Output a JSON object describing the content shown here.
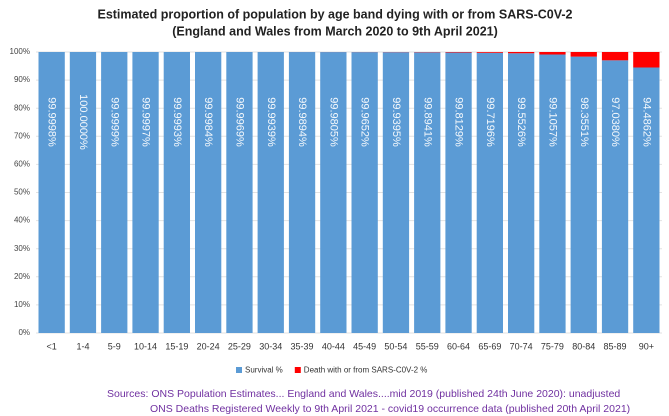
{
  "chart_data": {
    "type": "stacked_bar",
    "title": "Estimated proportion of population by age band dying with or from SARS-C0V-2",
    "subtitle": "(England and Wales from March 2020 to 9th April 2021)",
    "categories": [
      "<1",
      "1-4",
      "5-9",
      "10-14",
      "15-19",
      "20-24",
      "25-29",
      "30-34",
      "35-39",
      "40-44",
      "45-49",
      "50-54",
      "55-59",
      "60-64",
      "65-69",
      "70-74",
      "75-79",
      "80-84",
      "85-89",
      "90+"
    ],
    "series": [
      {
        "name": "Survival %",
        "color": "#5b9bd5",
        "values": [
          99.9998,
          100.0,
          99.9999,
          99.9997,
          99.9993,
          99.9984,
          99.9969,
          99.9939,
          99.9894,
          99.9805,
          99.9652,
          99.9395,
          99.8941,
          99.8129,
          99.7196,
          99.5526,
          99.1057,
          98.3551,
          97.038,
          94.4862
        ],
        "value_labels": [
          "99.9998%",
          "100.0000%",
          "99.9999%",
          "99.9997%",
          "99.9993%",
          "99.9984%",
          "99.9969%",
          "99.9939%",
          "99.9894%",
          "99.9805%",
          "99.9652%",
          "99.9395%",
          "99.8941%",
          "99.8129%",
          "99.7196%",
          "99.5526%",
          "99.1057%",
          "98.3551%",
          "97.0380%",
          "94.4862%"
        ]
      },
      {
        "name": "Death with or from SARS-C0V-2 %",
        "color": "#ff0000",
        "values": [
          0.0002,
          0.0,
          0.0001,
          0.0003,
          0.0007,
          0.0016,
          0.0031,
          0.0061,
          0.0106,
          0.0195,
          0.0348,
          0.0605,
          0.1059,
          0.1871,
          0.2804,
          0.4474,
          0.8943,
          1.6449,
          2.962,
          5.5138
        ]
      }
    ],
    "ylim": [
      0,
      100
    ],
    "yticks": [
      {
        "value": 0,
        "label": "0%"
      },
      {
        "value": 10,
        "label": "10%"
      },
      {
        "value": 20,
        "label": "20%"
      },
      {
        "value": 30,
        "label": "30%"
      },
      {
        "value": 40,
        "label": "40%"
      },
      {
        "value": 50,
        "label": "50%"
      },
      {
        "value": 60,
        "label": "60%"
      },
      {
        "value": 70,
        "label": "70%"
      },
      {
        "value": 80,
        "label": "80%"
      },
      {
        "value": 90,
        "label": "90%"
      },
      {
        "value": 100,
        "label": "100%"
      }
    ],
    "grid": true,
    "legend": "bottom",
    "sources": [
      "Sources:  ONS Population Estimates... England and Wales....mid 2019 (published 24th June 2020): unadjusted",
      "ONS Deaths Registered Weekly to 9th April 2021 - covid19 occurrence data (published 20th April 2021)"
    ]
  }
}
